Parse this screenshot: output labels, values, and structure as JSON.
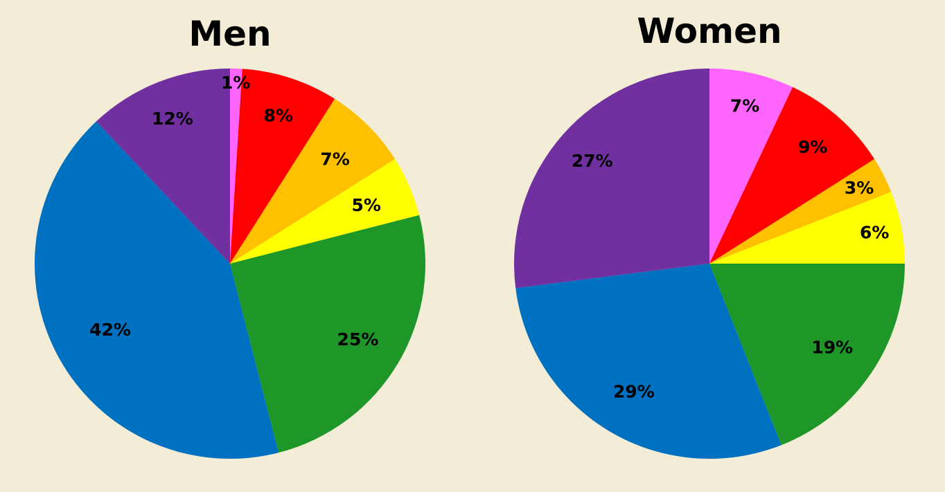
{
  "chart_data": [
    {
      "type": "pie",
      "title": "Men",
      "slices": [
        {
          "value": 1,
          "label": "1%",
          "color": "#FF66FF"
        },
        {
          "value": 8,
          "label": "8%",
          "color": "#FF0000"
        },
        {
          "value": 7,
          "label": "7%",
          "color": "#FFC000"
        },
        {
          "value": 5,
          "label": "5%",
          "color": "#FFFF00"
        },
        {
          "value": 25,
          "label": "25%",
          "color": "#1E9628"
        },
        {
          "value": 42,
          "label": "42%",
          "color": "#0070C0"
        },
        {
          "value": 12,
          "label": "12%",
          "color": "#7030A0"
        }
      ]
    },
    {
      "type": "pie",
      "title": "Women",
      "slices": [
        {
          "value": 7,
          "label": "7%",
          "color": "#FF66FF"
        },
        {
          "value": 9,
          "label": "9%",
          "color": "#FF0000"
        },
        {
          "value": 3,
          "label": "3%",
          "color": "#FFC000"
        },
        {
          "value": 6,
          "label": "6%",
          "color": "#FFFF00"
        },
        {
          "value": 19,
          "label": "19%",
          "color": "#1E9628"
        },
        {
          "value": 29,
          "label": "29%",
          "color": "#0070C0"
        },
        {
          "value": 27,
          "label": "27%",
          "color": "#7030A0"
        }
      ]
    }
  ]
}
